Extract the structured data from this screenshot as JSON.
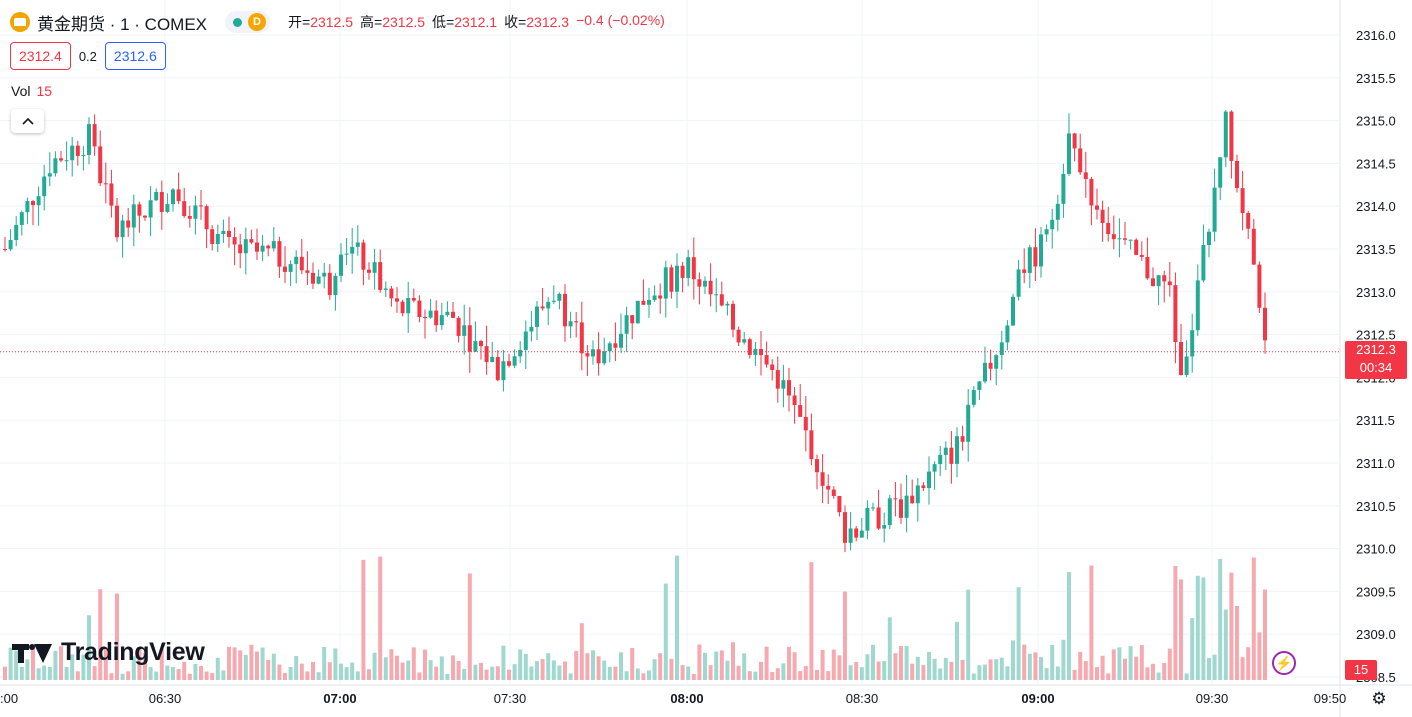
{
  "header": {
    "symbol": "黄金期货 · 1 · COMEX",
    "badge_letter": "D",
    "open_label": "开=",
    "open": "2312.5",
    "high_label": "高=",
    "high": "2312.5",
    "low_label": "低=",
    "low": "2312.1",
    "close_label": "收=",
    "close": "2312.3",
    "change": "−0.4 (−0.02%)",
    "bid": "2312.4",
    "spread": "0.2",
    "ask": "2312.6"
  },
  "volume_legend": {
    "label": "Vol",
    "value": "15"
  },
  "price_scale": {
    "last_price": "2312.3",
    "countdown": "00:34",
    "volume_tag": "15"
  },
  "logo": "TradingView",
  "colors": {
    "up": "#22ab94",
    "down": "#f23645",
    "up_vol": "#9fd8cf",
    "down_vol": "#f7a9b0"
  },
  "chart_data": {
    "type": "candlestick",
    "ylim": [
      2308.5,
      2316.2
    ],
    "y_ticks": [
      "2316.0",
      "2315.5",
      "2315.0",
      "2314.5",
      "2314.0",
      "2313.5",
      "2313.0",
      "2312.5",
      "2312.0",
      "2311.5",
      "2311.0",
      "2310.5",
      "2310.0",
      "2309.5",
      "2309.0",
      "2308.5"
    ],
    "x_ticks": [
      ":00",
      "06:30",
      "07:00",
      "07:30",
      "08:00",
      "08:30",
      "09:00",
      "09:30",
      "09:50"
    ],
    "bold_x_ticks": [
      "07:00",
      "08:00",
      "09:00"
    ],
    "last_price_line": 2312.3,
    "key_points": [
      [
        "06:00",
        2313.5
      ],
      [
        "06:08",
        2314.5
      ],
      [
        "06:15",
        2314.8
      ],
      [
        "06:20",
        2313.7
      ],
      [
        "06:30",
        2314.2
      ],
      [
        "06:40",
        2313.5
      ],
      [
        "06:50",
        2313.4
      ],
      [
        "06:58",
        2313.1
      ],
      [
        "07:00",
        2313.6
      ],
      [
        "07:05",
        2313.3
      ],
      [
        "07:10",
        2312.8
      ],
      [
        "07:20",
        2312.7
      ],
      [
        "07:28",
        2312.1
      ],
      [
        "07:38",
        2313.0
      ],
      [
        "07:45",
        2312.2
      ],
      [
        "07:55",
        2313.0
      ],
      [
        "08:02",
        2313.3
      ],
      [
        "08:10",
        2312.6
      ],
      [
        "08:18",
        2312.0
      ],
      [
        "08:24",
        2311.2
      ],
      [
        "08:30",
        2310.2
      ],
      [
        "08:40",
        2310.5
      ],
      [
        "08:50",
        2311.2
      ],
      [
        "08:58",
        2312.5
      ],
      [
        "09:02",
        2313.3
      ],
      [
        "09:06",
        2313.6
      ],
      [
        "09:10",
        2314.8
      ],
      [
        "09:15",
        2314.0
      ],
      [
        "09:20",
        2313.5
      ],
      [
        "09:28",
        2313.0
      ],
      [
        "09:30",
        2312.0
      ],
      [
        "09:33",
        2313.0
      ],
      [
        "09:38",
        2315.0
      ],
      [
        "09:41",
        2314.0
      ],
      [
        "09:45",
        2312.3
      ]
    ],
    "volume_ylim": [
      0,
      40
    ]
  }
}
